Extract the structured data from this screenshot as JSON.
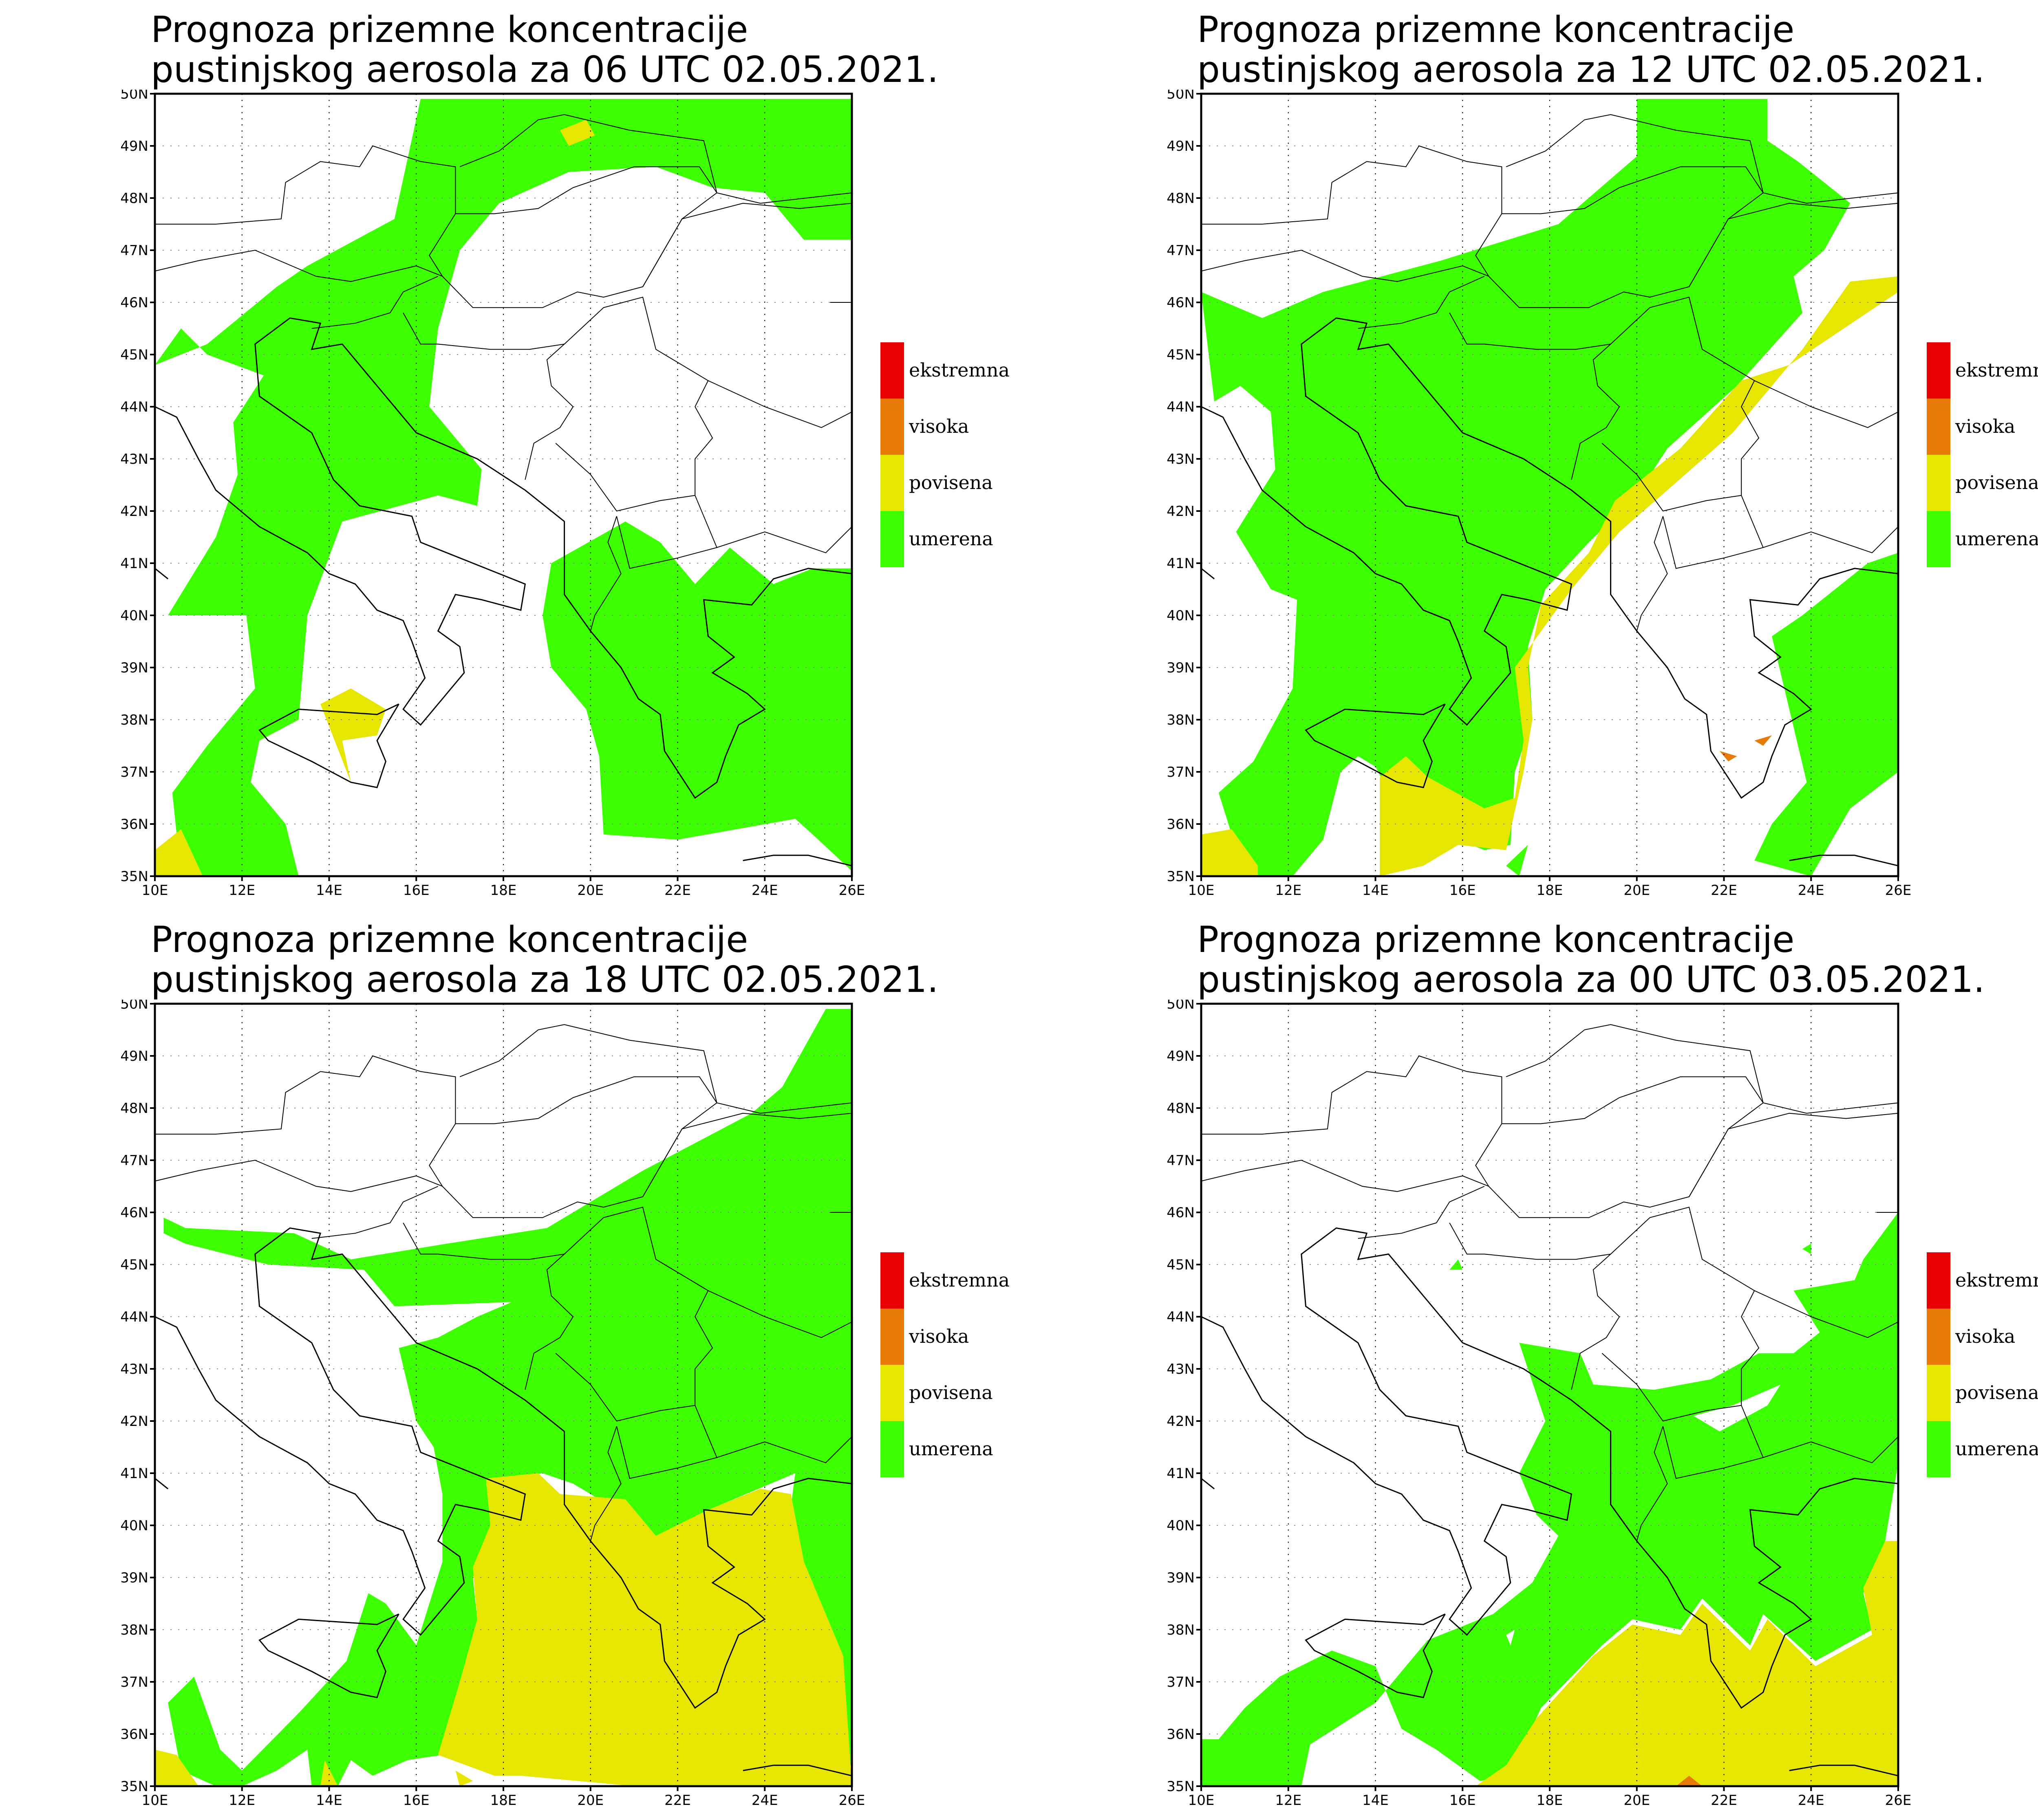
{
  "panels": [
    {
      "title_line1": "Prognoza prizemne koncentracije",
      "title_line2": "pustinjskog aerosola za 06 UTC 02.05.2021."
    },
    {
      "title_line1": "Prognoza prizemne koncentracije",
      "title_line2": "pustinjskog aerosola za 12 UTC 02.05.2021."
    },
    {
      "title_line1": "Prognoza prizemne koncentracije",
      "title_line2": "pustinjskog aerosola za 18 UTC 02.05.2021."
    },
    {
      "title_line1": "Prognoza prizemne koncentracije",
      "title_line2": "pustinjskog aerosola za 00 UTC 03.05.2021."
    }
  ],
  "lat_labels": [
    "50N",
    "49N",
    "48N",
    "47N",
    "46N",
    "45N",
    "44N",
    "43N",
    "42N",
    "41N",
    "40N",
    "39N",
    "38N",
    "37N",
    "36N",
    "35N"
  ],
  "lon_labels": [
    "10E",
    "12E",
    "14E",
    "16E",
    "18E",
    "20E",
    "22E",
    "24E",
    "26E"
  ],
  "legend": [
    {
      "label": "ekstremna",
      "color": "#e60000"
    },
    {
      "label": "visoka",
      "color": "#e87a0a"
    },
    {
      "label": "povisena",
      "color": "#e6e600"
    },
    {
      "label": "umerena",
      "color": "#3cff00"
    }
  ],
  "colors": {
    "umerena": "#3cff00",
    "povisena": "#e6e600",
    "visoka": "#e87a0a",
    "ekstremna": "#e60000",
    "background": "#ffffff"
  }
}
